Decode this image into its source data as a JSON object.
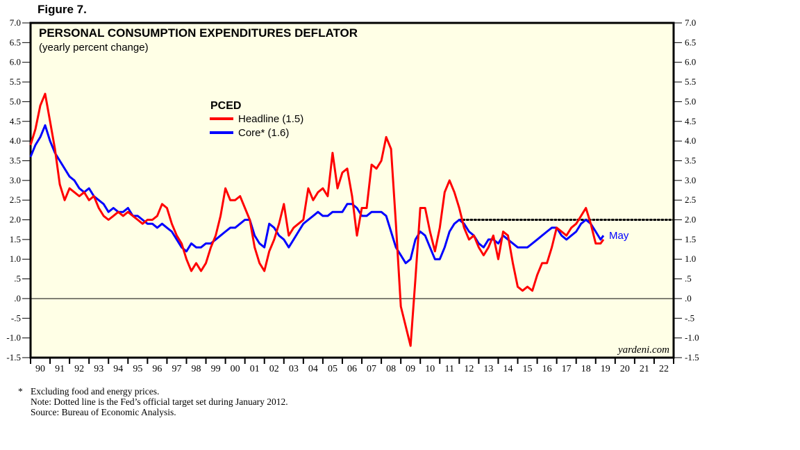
{
  "figure_label": "Figure 7.",
  "chart_data": {
    "type": "line",
    "title": "PERSONAL CONSUMPTION EXPENDITURES DEFLATOR",
    "subtitle": "(yearly percent change)",
    "xlabel": "",
    "ylabel": "",
    "ylim": [
      -1.5,
      7.0
    ],
    "xlim": [
      1990,
      2023
    ],
    "grid": false,
    "legend_placement": "top-center",
    "legend_title": "PCED",
    "y_ticks": [
      "7.0",
      "6.5",
      "6.0",
      "5.5",
      "5.0",
      "4.5",
      "4.0",
      "3.5",
      "3.0",
      "2.5",
      "2.0",
      "1.5",
      "1.0",
      ".5",
      ".0",
      "-.5",
      "-1.0",
      "-1.5"
    ],
    "x_tick_labels": [
      "90",
      "91",
      "92",
      "93",
      "94",
      "95",
      "96",
      "97",
      "98",
      "99",
      "00",
      "01",
      "02",
      "03",
      "04",
      "05",
      "06",
      "07",
      "08",
      "09",
      "10",
      "11",
      "12",
      "13",
      "14",
      "15",
      "16",
      "17",
      "18",
      "19",
      "20",
      "21",
      "22"
    ],
    "reference_lines": [
      {
        "name": "zero-line",
        "y": 0.0,
        "style": "solid",
        "from": 1990,
        "to": 2023
      },
      {
        "name": "fed-target-line",
        "y": 2.0,
        "style": "dotted",
        "from": 2012,
        "to": 2023
      }
    ],
    "annotations": [
      {
        "text": "May",
        "x": 2019.4,
        "y": 1.6
      }
    ],
    "series": [
      {
        "name": "Headline (1.5)",
        "color": "#ff0000",
        "x": [
          1990.0,
          1990.25,
          1990.5,
          1990.75,
          1991.0,
          1991.25,
          1991.5,
          1991.75,
          1992.0,
          1992.25,
          1992.5,
          1992.75,
          1993.0,
          1993.25,
          1993.5,
          1993.75,
          1994.0,
          1994.25,
          1994.5,
          1994.75,
          1995.0,
          1995.25,
          1995.5,
          1995.75,
          1996.0,
          1996.25,
          1996.5,
          1996.75,
          1997.0,
          1997.25,
          1997.5,
          1997.75,
          1998.0,
          1998.25,
          1998.5,
          1998.75,
          1999.0,
          1999.25,
          1999.5,
          1999.75,
          2000.0,
          2000.25,
          2000.5,
          2000.75,
          2001.0,
          2001.25,
          2001.5,
          2001.75,
          2002.0,
          2002.25,
          2002.5,
          2002.75,
          2003.0,
          2003.25,
          2003.5,
          2003.75,
          2004.0,
          2004.25,
          2004.5,
          2004.75,
          2005.0,
          2005.25,
          2005.5,
          2005.75,
          2006.0,
          2006.25,
          2006.5,
          2006.75,
          2007.0,
          2007.25,
          2007.5,
          2007.75,
          2008.0,
          2008.25,
          2008.5,
          2008.75,
          2009.0,
          2009.25,
          2009.5,
          2009.75,
          2010.0,
          2010.25,
          2010.5,
          2010.75,
          2011.0,
          2011.25,
          2011.5,
          2011.75,
          2012.0,
          2012.25,
          2012.5,
          2012.75,
          2013.0,
          2013.25,
          2013.5,
          2013.75,
          2014.0,
          2014.25,
          2014.5,
          2014.75,
          2015.0,
          2015.25,
          2015.5,
          2015.75,
          2016.0,
          2016.25,
          2016.5,
          2016.75,
          2017.0,
          2017.25,
          2017.5,
          2017.75,
          2018.0,
          2018.25,
          2018.5,
          2018.75,
          2019.0,
          2019.25,
          2019.4
        ],
        "values": [
          3.9,
          4.3,
          4.9,
          5.2,
          4.5,
          3.8,
          2.9,
          2.5,
          2.8,
          2.7,
          2.6,
          2.7,
          2.5,
          2.6,
          2.3,
          2.1,
          2.0,
          2.1,
          2.2,
          2.1,
          2.2,
          2.1,
          2.0,
          1.9,
          2.0,
          2.0,
          2.1,
          2.4,
          2.3,
          1.9,
          1.6,
          1.4,
          1.0,
          0.7,
          0.9,
          0.7,
          0.9,
          1.3,
          1.6,
          2.1,
          2.8,
          2.5,
          2.5,
          2.6,
          2.3,
          2.0,
          1.3,
          0.9,
          0.7,
          1.2,
          1.5,
          1.9,
          2.4,
          1.6,
          1.8,
          1.9,
          2.0,
          2.8,
          2.5,
          2.7,
          2.8,
          2.6,
          3.7,
          2.8,
          3.2,
          3.3,
          2.6,
          1.6,
          2.3,
          2.3,
          3.4,
          3.3,
          3.5,
          4.1,
          3.8,
          1.9,
          -0.2,
          -0.7,
          -1.2,
          0.5,
          2.3,
          2.3,
          1.7,
          1.2,
          1.8,
          2.7,
          3.0,
          2.7,
          2.3,
          1.8,
          1.5,
          1.6,
          1.3,
          1.1,
          1.3,
          1.6,
          1.0,
          1.7,
          1.6,
          0.9,
          0.3,
          0.2,
          0.3,
          0.2,
          0.6,
          0.9,
          0.9,
          1.3,
          1.8,
          1.7,
          1.6,
          1.8,
          1.9,
          2.1,
          2.3,
          1.9,
          1.4,
          1.4,
          1.5
        ]
      },
      {
        "name": "Core* (1.6)",
        "color": "#0000ff",
        "x": [
          1990.0,
          1990.25,
          1990.5,
          1990.75,
          1991.0,
          1991.25,
          1991.5,
          1991.75,
          1992.0,
          1992.25,
          1992.5,
          1992.75,
          1993.0,
          1993.25,
          1993.5,
          1993.75,
          1994.0,
          1994.25,
          1994.5,
          1994.75,
          1995.0,
          1995.25,
          1995.5,
          1995.75,
          1996.0,
          1996.25,
          1996.5,
          1996.75,
          1997.0,
          1997.25,
          1997.5,
          1997.75,
          1998.0,
          1998.25,
          1998.5,
          1998.75,
          1999.0,
          1999.25,
          1999.5,
          1999.75,
          2000.0,
          2000.25,
          2000.5,
          2000.75,
          2001.0,
          2001.25,
          2001.5,
          2001.75,
          2002.0,
          2002.25,
          2002.5,
          2002.75,
          2003.0,
          2003.25,
          2003.5,
          2003.75,
          2004.0,
          2004.25,
          2004.5,
          2004.75,
          2005.0,
          2005.25,
          2005.5,
          2005.75,
          2006.0,
          2006.25,
          2006.5,
          2006.75,
          2007.0,
          2007.25,
          2007.5,
          2007.75,
          2008.0,
          2008.25,
          2008.5,
          2008.75,
          2009.0,
          2009.25,
          2009.5,
          2009.75,
          2010.0,
          2010.25,
          2010.5,
          2010.75,
          2011.0,
          2011.25,
          2011.5,
          2011.75,
          2012.0,
          2012.25,
          2012.5,
          2012.75,
          2013.0,
          2013.25,
          2013.5,
          2013.75,
          2014.0,
          2014.25,
          2014.5,
          2014.75,
          2015.0,
          2015.25,
          2015.5,
          2015.75,
          2016.0,
          2016.25,
          2016.5,
          2016.75,
          2017.0,
          2017.25,
          2017.5,
          2017.75,
          2018.0,
          2018.25,
          2018.5,
          2018.75,
          2019.0,
          2019.25,
          2019.4
        ],
        "values": [
          3.6,
          3.9,
          4.1,
          4.4,
          4.0,
          3.7,
          3.5,
          3.3,
          3.1,
          3.0,
          2.8,
          2.7,
          2.8,
          2.6,
          2.5,
          2.4,
          2.2,
          2.3,
          2.2,
          2.2,
          2.3,
          2.1,
          2.1,
          2.0,
          1.9,
          1.9,
          1.8,
          1.9,
          1.8,
          1.7,
          1.5,
          1.3,
          1.2,
          1.4,
          1.3,
          1.3,
          1.4,
          1.4,
          1.5,
          1.6,
          1.7,
          1.8,
          1.8,
          1.9,
          2.0,
          2.0,
          1.6,
          1.4,
          1.3,
          1.9,
          1.8,
          1.6,
          1.5,
          1.3,
          1.5,
          1.7,
          1.9,
          2.0,
          2.1,
          2.2,
          2.1,
          2.1,
          2.2,
          2.2,
          2.2,
          2.4,
          2.4,
          2.3,
          2.1,
          2.1,
          2.2,
          2.2,
          2.2,
          2.1,
          1.7,
          1.3,
          1.1,
          0.9,
          1.0,
          1.5,
          1.7,
          1.6,
          1.3,
          1.0,
          1.0,
          1.3,
          1.7,
          1.9,
          2.0,
          1.9,
          1.7,
          1.6,
          1.4,
          1.3,
          1.5,
          1.5,
          1.4,
          1.6,
          1.5,
          1.4,
          1.3,
          1.3,
          1.3,
          1.4,
          1.5,
          1.6,
          1.7,
          1.8,
          1.8,
          1.6,
          1.5,
          1.6,
          1.7,
          1.9,
          2.0,
          1.9,
          1.7,
          1.5,
          1.6
        ]
      }
    ]
  },
  "legend": {
    "title": "PCED",
    "items": [
      {
        "label": "Headline (1.5)",
        "color": "#ff0000"
      },
      {
        "label": "Core* (1.6)",
        "color": "#0000ff"
      }
    ]
  },
  "annotation_may": "May",
  "brand": "yardeni.com",
  "notes": {
    "star": "*",
    "line1": "Excluding food and energy prices.",
    "line2": "Note: Dotted line is the Fed’s official target set during January 2012.",
    "line3": "Source: Bureau of Economic Analysis."
  },
  "colors": {
    "plot_background": "#ffffe6",
    "headline": "#ff0000",
    "core": "#0000ff"
  }
}
